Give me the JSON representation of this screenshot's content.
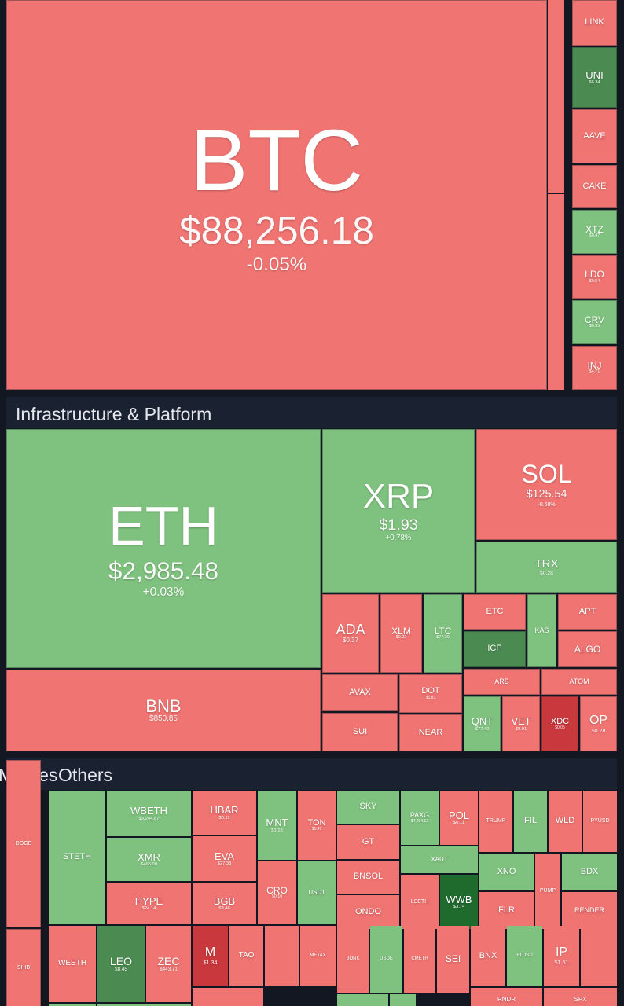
{
  "section_titles": [
    "Infrastructure & Platform",
    "Memes",
    "Others"
  ],
  "tiles": [
    {
      "symbol": "BTC",
      "price": "$88,256.18",
      "change": "-0.05%"
    },
    {
      "symbol": "LINK"
    },
    {
      "symbol": "UNI",
      "price": "$6.34"
    },
    {
      "symbol": "AAVE"
    },
    {
      "symbol": "CAKE"
    },
    {
      "symbol": "XTZ",
      "price": "$0.47"
    },
    {
      "symbol": "LDO",
      "price": "$0.54"
    },
    {
      "symbol": "CRV",
      "price": "$0.35"
    },
    {
      "symbol": "INJ",
      "price": "$4.71"
    },
    {
      "symbol": "ETH",
      "price": "$2,985.48",
      "change": "+0.03%"
    },
    {
      "symbol": "BNB",
      "price": "$850.85"
    },
    {
      "symbol": "XRP",
      "price": "$1.93",
      "change": "+0.78%"
    },
    {
      "symbol": "SOL",
      "price": "$125.54",
      "change": "-0.68%"
    },
    {
      "symbol": "TRX",
      "price": "$0.28"
    },
    {
      "symbol": "ADA",
      "price": "$0.37"
    },
    {
      "symbol": "XLM",
      "price": "$0.22"
    },
    {
      "symbol": "LTC",
      "price": "$77.20"
    },
    {
      "symbol": "AVAX"
    },
    {
      "symbol": "DOT",
      "price": "$1.83"
    },
    {
      "symbol": "SUI"
    },
    {
      "symbol": "NEAR"
    },
    {
      "symbol": "ETC"
    },
    {
      "symbol": "ICP"
    },
    {
      "symbol": "KAS"
    },
    {
      "symbol": "APT"
    },
    {
      "symbol": "ALGO"
    },
    {
      "symbol": "ARB"
    },
    {
      "symbol": "ATOM"
    },
    {
      "symbol": "QNT",
      "price": "$77.40"
    },
    {
      "symbol": "VET",
      "price": "$0.01"
    },
    {
      "symbol": "XDC",
      "price": "$0.05"
    },
    {
      "symbol": "OP",
      "price": "$0.28"
    },
    {
      "symbol": "DOGE"
    },
    {
      "symbol": "SHIB"
    },
    {
      "symbol": "STETH"
    },
    {
      "symbol": "WBETH",
      "price": "$3,244.87"
    },
    {
      "symbol": "XMR",
      "price": "$465.00"
    },
    {
      "symbol": "HYPE",
      "price": "$24.14"
    },
    {
      "symbol": "HBAR",
      "price": "$0.11"
    },
    {
      "symbol": "EVA",
      "price": "$27.38"
    },
    {
      "symbol": "BGB",
      "price": "$3.46"
    },
    {
      "symbol": "MNT",
      "price": "$1.18"
    },
    {
      "symbol": "TON",
      "price": "$1.49"
    },
    {
      "symbol": "CRO",
      "price": "$0.10"
    },
    {
      "symbol": "USD1"
    },
    {
      "symbol": "SKY"
    },
    {
      "symbol": "GT"
    },
    {
      "symbol": "BNSOL"
    },
    {
      "symbol": "ONDO"
    },
    {
      "symbol": "PAXG",
      "price": "$4,294.12"
    },
    {
      "symbol": "POL",
      "price": "$0.11"
    },
    {
      "symbol": "XAUT"
    },
    {
      "symbol": "LSETH"
    },
    {
      "symbol": "WWB",
      "price": "$3.74"
    },
    {
      "symbol": "TRUMP"
    },
    {
      "symbol": "FIL"
    },
    {
      "symbol": "WLD"
    },
    {
      "symbol": "PYUSD"
    },
    {
      "symbol": "XNO"
    },
    {
      "symbol": "FLR"
    },
    {
      "symbol": "PUMP"
    },
    {
      "symbol": "BDX"
    },
    {
      "symbol": "RENDER"
    },
    {
      "symbol": "WEETH"
    },
    {
      "symbol": "LEO",
      "price": "$8.45"
    },
    {
      "symbol": "ZEC",
      "price": "$443.71"
    },
    {
      "symbol": "M",
      "price": "$1.34"
    },
    {
      "symbol": "TAO"
    },
    {
      "symbol": "METAX"
    },
    {
      "symbol": "BONK"
    },
    {
      "symbol": "USDE"
    },
    {
      "symbol": "CMETH"
    },
    {
      "symbol": "SEI"
    },
    {
      "symbol": "BNX"
    },
    {
      "symbol": "RLUSD"
    },
    {
      "symbol": "IP",
      "price": "$1.61"
    },
    {
      "symbol": "RNDR"
    },
    {
      "symbol": "SPX"
    }
  ]
}
